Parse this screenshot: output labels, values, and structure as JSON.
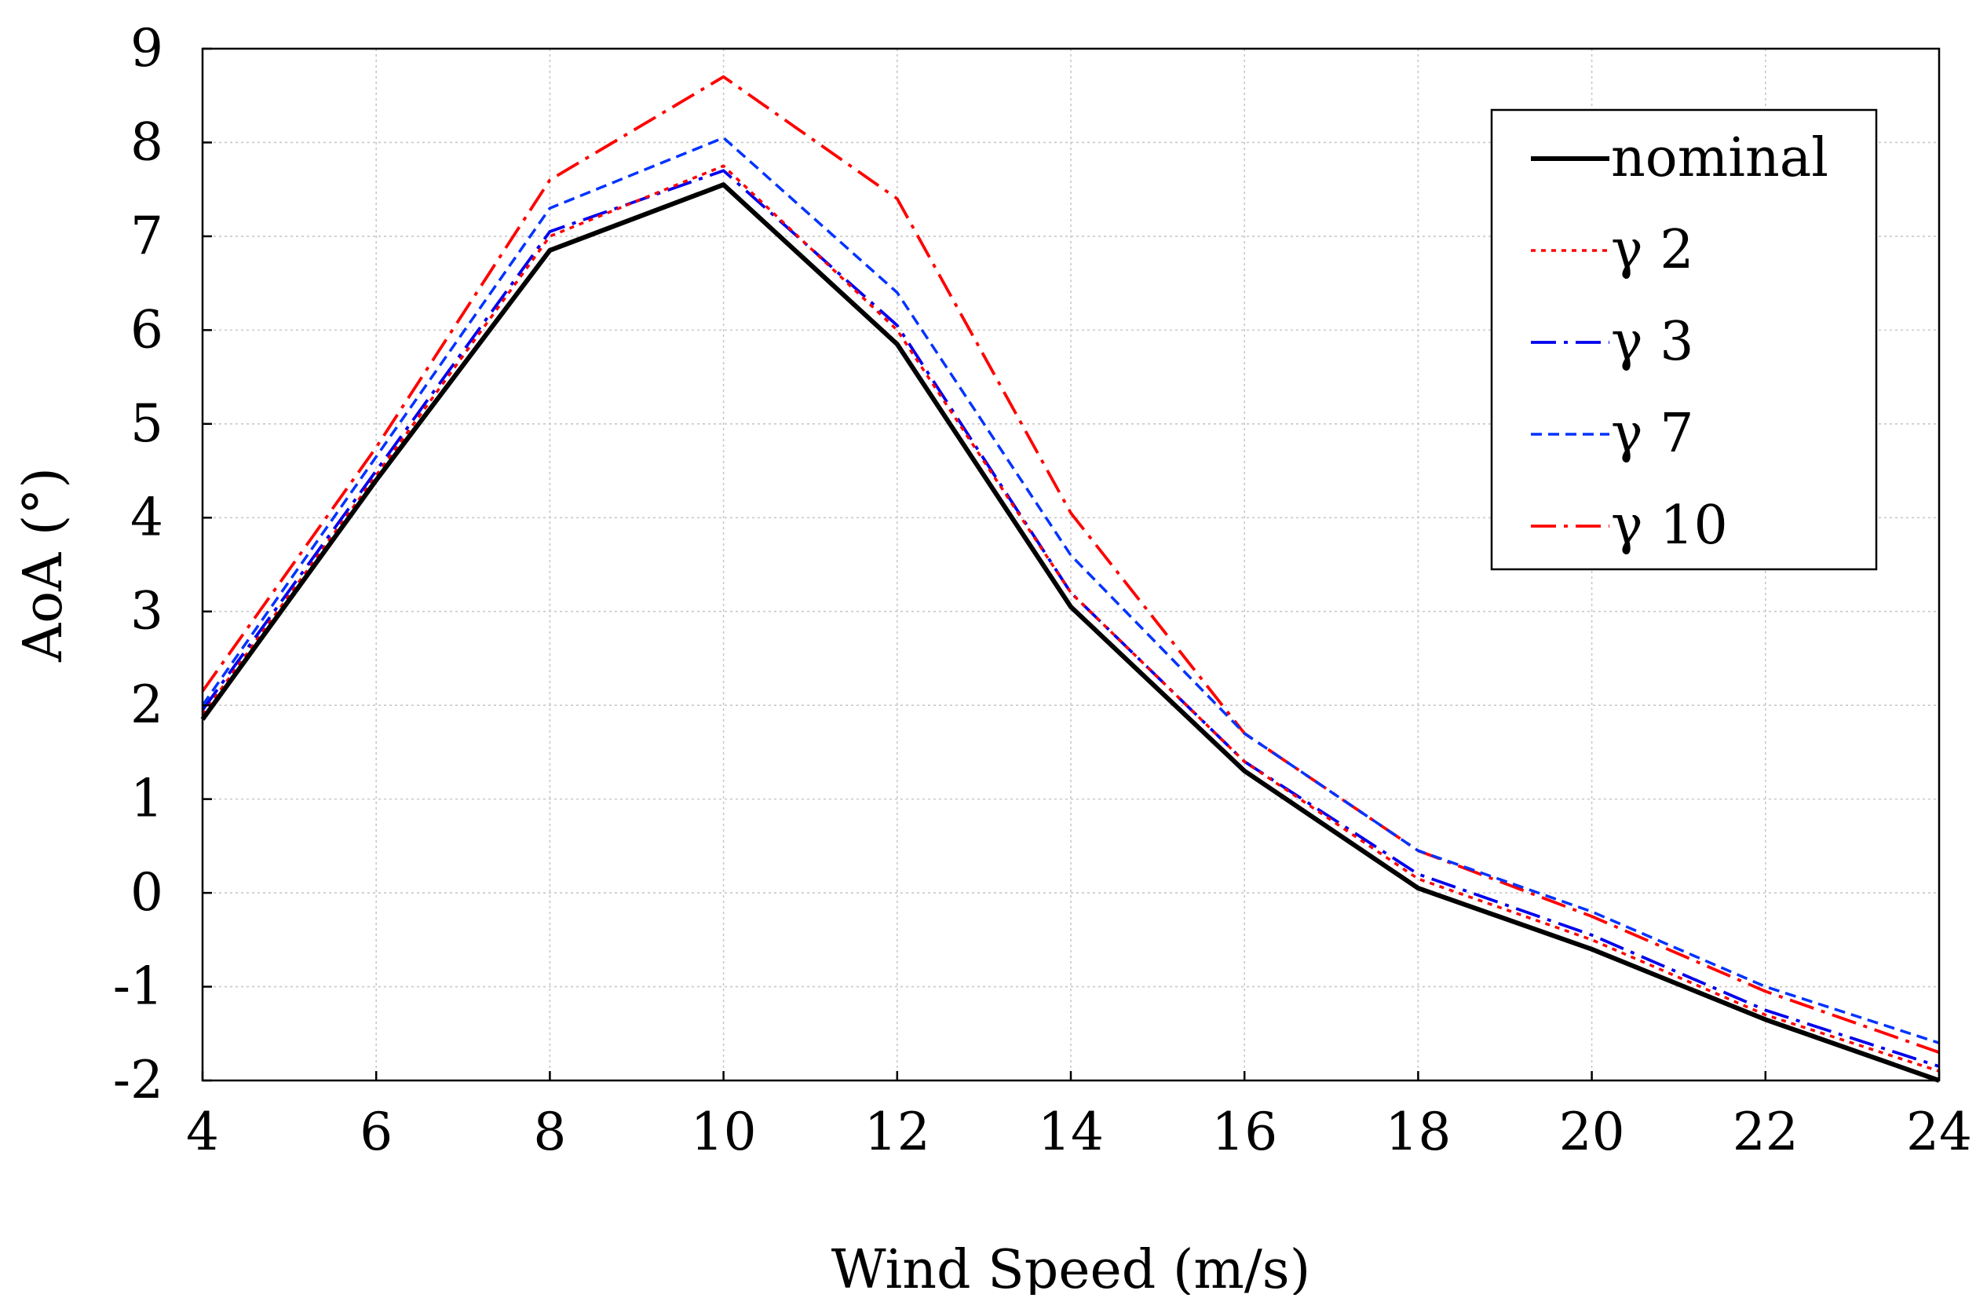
{
  "chart_data": {
    "type": "line",
    "title": "",
    "xlabel": "Wind Speed (m/s)",
    "ylabel": "AoA (°)",
    "xlim": [
      4,
      24
    ],
    "ylim": [
      -2,
      9
    ],
    "x_ticks": [
      4,
      6,
      8,
      10,
      12,
      14,
      16,
      18,
      20,
      22,
      24
    ],
    "y_ticks": [
      -2,
      -1,
      0,
      1,
      2,
      3,
      4,
      5,
      6,
      7,
      8,
      9
    ],
    "grid": true,
    "legend_position": "top-right",
    "x": [
      4,
      6,
      8,
      10,
      12,
      14,
      16,
      18,
      20,
      22,
      24
    ],
    "series": [
      {
        "name": "nominal",
        "color": "#000000",
        "style": "solid",
        "values": [
          1.85,
          4.4,
          6.85,
          7.55,
          5.85,
          3.05,
          1.3,
          0.05,
          -0.6,
          -1.35,
          -2.0
        ]
      },
      {
        "name": "γ 2",
        "color": "#ff0000",
        "style": "dotted",
        "values": [
          1.9,
          4.45,
          7.0,
          7.75,
          6.0,
          3.2,
          1.4,
          0.15,
          -0.5,
          -1.3,
          -1.9
        ]
      },
      {
        "name": "γ 3",
        "color": "#0000ee",
        "style": "dashdot",
        "values": [
          1.95,
          4.5,
          7.05,
          7.7,
          6.05,
          3.2,
          1.4,
          0.2,
          -0.45,
          -1.25,
          -1.85
        ]
      },
      {
        "name": "γ 7",
        "color": "#0033ff",
        "style": "dashed",
        "values": [
          2.0,
          4.65,
          7.3,
          8.05,
          6.4,
          3.6,
          1.7,
          0.45,
          -0.2,
          -1.0,
          -1.6
        ]
      },
      {
        "name": "γ 10",
        "color": "#ff0000",
        "style": "dashdot",
        "values": [
          2.15,
          4.75,
          7.6,
          8.7,
          7.4,
          4.05,
          1.7,
          0.45,
          -0.25,
          -1.05,
          -1.7
        ]
      }
    ]
  }
}
